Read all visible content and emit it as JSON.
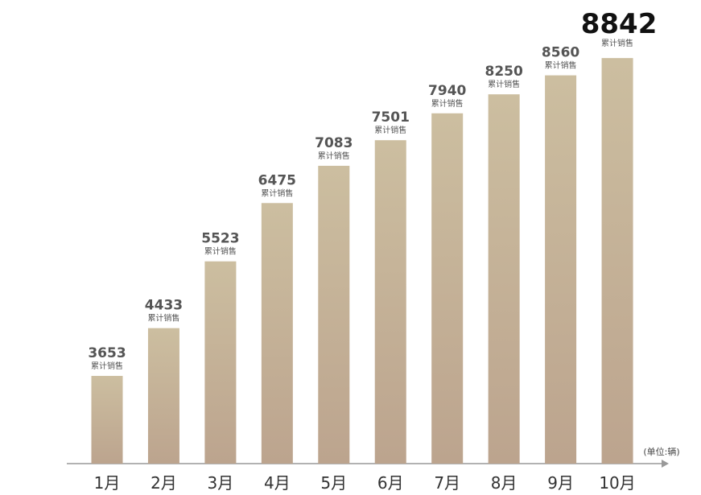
{
  "chart_data": {
    "type": "bar",
    "categories": [
      "1月",
      "2月",
      "3月",
      "4月",
      "5月",
      "6月",
      "7月",
      "8月",
      "9月",
      "10月"
    ],
    "values": [
      3653,
      4433,
      5523,
      6475,
      7083,
      7501,
      7940,
      8250,
      8560,
      8842
    ],
    "annotation": "累计销售",
    "unit": "(单位:辆)",
    "gradient": [
      "#ccbea0",
      "#bca48e"
    ],
    "ylim": [
      2221,
      9790
    ]
  }
}
